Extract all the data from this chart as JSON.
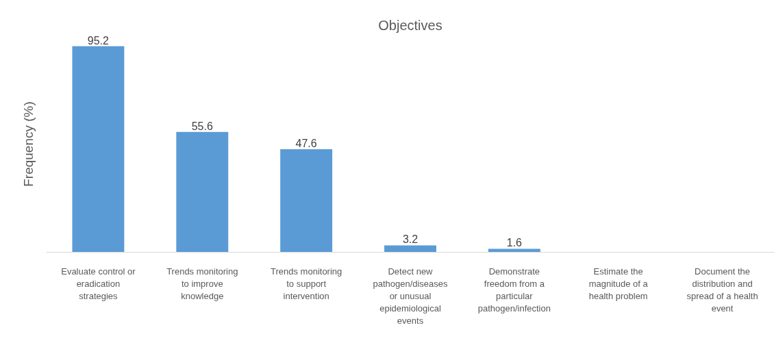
{
  "chart_data": {
    "type": "bar",
    "title": "Objectives",
    "ylabel": "Frequency (%)",
    "categories": [
      "Evaluate control or eradication strategies",
      "Trends monitoring to improve knowledge",
      "Trends monitoring to support intervention",
      "Detect new pathogen/diseases or unusual epidemiological events",
      "Demonstrate freedom from a particular pathogen/infection",
      "Estimate the magnitude of a health problem",
      "Document the distribution and spread of a health event"
    ],
    "values": [
      95.2,
      55.6,
      47.6,
      3.2,
      1.6,
      null,
      null
    ],
    "color": "#5b9bd5",
    "data_labels": true
  }
}
